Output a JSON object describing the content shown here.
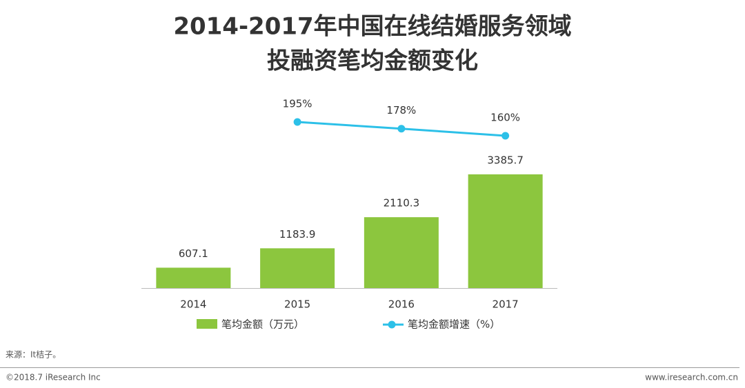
{
  "chart_data": {
    "type": "combo",
    "title": [
      "2014-2017年中国在线结婚服务领域",
      "投融资笔均金额变化"
    ],
    "categories": [
      "2014",
      "2015",
      "2016",
      "2017"
    ],
    "series": [
      {
        "name": "笔均金额（万元）",
        "type": "bar",
        "color": "#8cc63e",
        "values": [
          607.1,
          1183.9,
          2110.3,
          3385.7
        ]
      },
      {
        "name": "笔均金额增速（%）",
        "type": "line",
        "color": "#2cc0e8",
        "values": [
          null,
          195,
          178,
          160
        ],
        "value_labels": [
          null,
          "195%",
          "178%",
          "160%"
        ]
      }
    ],
    "source": "来源：It桔子。",
    "copyright": "©2018.7 iResearch Inc",
    "website": "www.iresearch.com.cn"
  }
}
